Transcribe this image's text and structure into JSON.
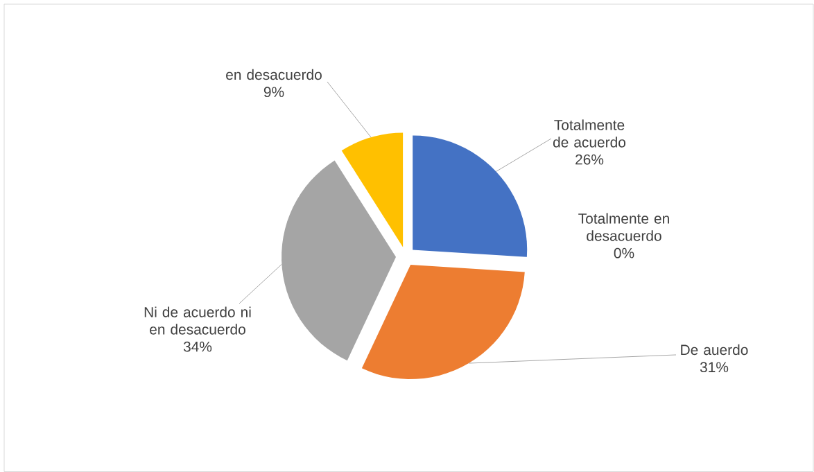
{
  "chart_data": {
    "type": "pie",
    "categories": [
      "Totalmente de acuerdo",
      "Totalmente en desacuerdo",
      "De auerdo",
      "Ni de acuerdo ni en desacuerdo",
      "en desacuerdo"
    ],
    "values": [
      26,
      0,
      31,
      34,
      9
    ],
    "value_labels": [
      "26%",
      "0%",
      "31%",
      "34%",
      "9%"
    ],
    "colors": [
      "#4472c4",
      "#5b9bd5",
      "#ed7d31",
      "#a5a5a5",
      "#ffc000"
    ]
  }
}
